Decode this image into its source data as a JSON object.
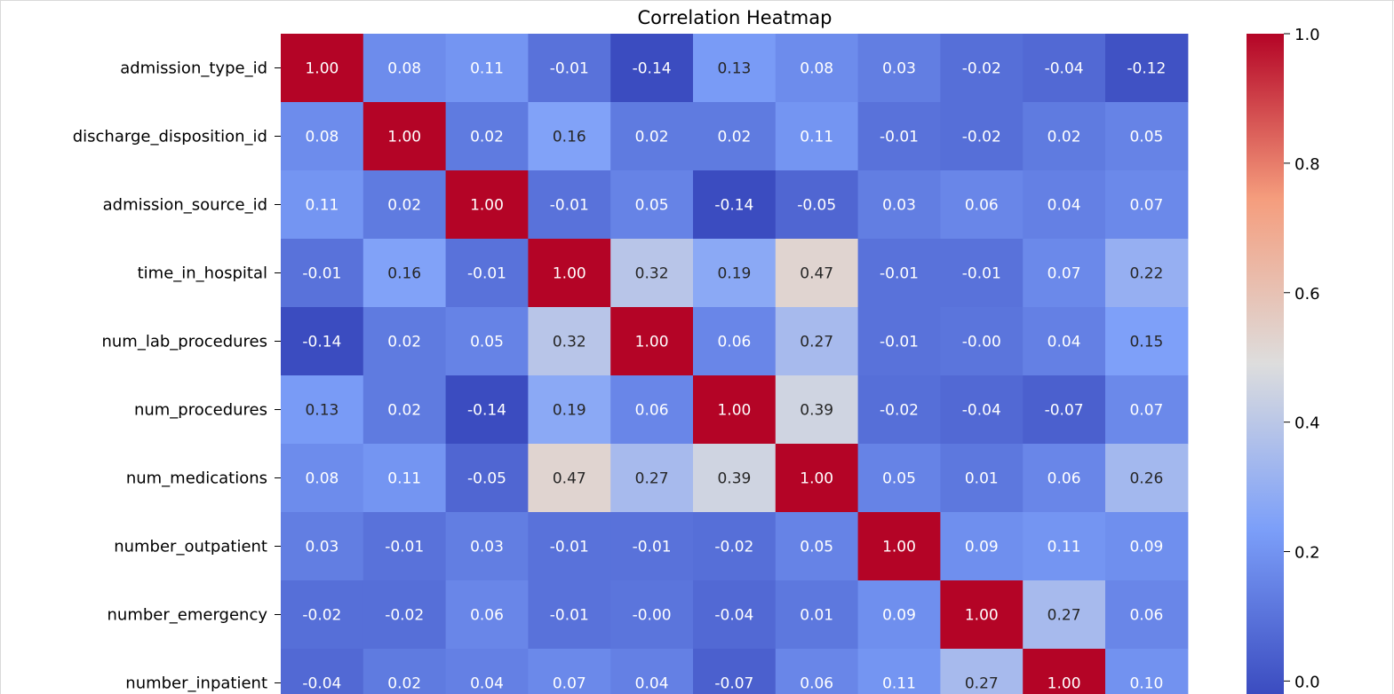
{
  "chart_data": {
    "type": "heatmap",
    "title": "Correlation Heatmap",
    "colormap": "coolwarm",
    "value_range": [
      -0.14,
      1.0
    ],
    "rows": [
      "admission_type_id",
      "discharge_disposition_id",
      "admission_source_id",
      "time_in_hospital",
      "num_lab_procedures",
      "num_procedures",
      "num_medications",
      "number_outpatient",
      "number_emergency",
      "number_inpatient"
    ],
    "columns_count": 11,
    "cell_labels": [
      [
        "1.00",
        "0.08",
        "0.11",
        "-0.01",
        "-0.14",
        "0.13",
        "0.08",
        "0.03",
        "-0.02",
        "-0.04",
        "-0.12"
      ],
      [
        "0.08",
        "1.00",
        "0.02",
        "0.16",
        "0.02",
        "0.02",
        "0.11",
        "-0.01",
        "-0.02",
        "0.02",
        "0.05"
      ],
      [
        "0.11",
        "0.02",
        "1.00",
        "-0.01",
        "0.05",
        "-0.14",
        "-0.05",
        "0.03",
        "0.06",
        "0.04",
        "0.07"
      ],
      [
        "-0.01",
        "0.16",
        "-0.01",
        "1.00",
        "0.32",
        "0.19",
        "0.47",
        "-0.01",
        "-0.01",
        "0.07",
        "0.22"
      ],
      [
        "-0.14",
        "0.02",
        "0.05",
        "0.32",
        "1.00",
        "0.06",
        "0.27",
        "-0.01",
        "-0.00",
        "0.04",
        "0.15"
      ],
      [
        "0.13",
        "0.02",
        "-0.14",
        "0.19",
        "0.06",
        "1.00",
        "0.39",
        "-0.02",
        "-0.04",
        "-0.07",
        "0.07"
      ],
      [
        "0.08",
        "0.11",
        "-0.05",
        "0.47",
        "0.27",
        "0.39",
        "1.00",
        "0.05",
        "0.01",
        "0.06",
        "0.26"
      ],
      [
        "0.03",
        "-0.01",
        "0.03",
        "-0.01",
        "-0.01",
        "-0.02",
        "0.05",
        "1.00",
        "0.09",
        "0.11",
        "0.09"
      ],
      [
        "-0.02",
        "-0.02",
        "0.06",
        "-0.01",
        "-0.00",
        "-0.04",
        "0.01",
        "0.09",
        "1.00",
        "0.27",
        "0.06"
      ],
      [
        "-0.04",
        "0.02",
        "0.04",
        "0.07",
        "0.04",
        "-0.07",
        "0.06",
        "0.11",
        "0.27",
        "1.00",
        "0.10"
      ]
    ],
    "colorbar": {
      "ticks": [
        {
          "value": 1.0,
          "label": "1.0"
        },
        {
          "value": 0.8,
          "label": "0.8"
        },
        {
          "value": 0.6,
          "label": "0.6"
        },
        {
          "value": 0.4,
          "label": "0.4"
        },
        {
          "value": 0.2,
          "label": "0.2"
        },
        {
          "value": 0.0,
          "label": "0.0"
        }
      ]
    }
  }
}
